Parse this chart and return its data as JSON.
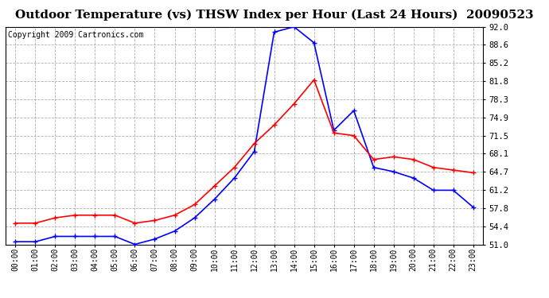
{
  "title": "Outdoor Temperature (vs) THSW Index per Hour (Last 24 Hours)  20090523",
  "copyright": "Copyright 2009 Cartronics.com",
  "hours": [
    "00:00",
    "01:00",
    "02:00",
    "03:00",
    "04:00",
    "05:00",
    "06:00",
    "07:00",
    "08:00",
    "09:00",
    "10:00",
    "11:00",
    "12:00",
    "13:00",
    "14:00",
    "15:00",
    "16:00",
    "17:00",
    "18:00",
    "19:00",
    "20:00",
    "21:00",
    "22:00",
    "23:00"
  ],
  "temp_blue": [
    51.5,
    51.5,
    52.5,
    52.5,
    52.5,
    52.5,
    51.0,
    52.0,
    53.5,
    56.0,
    59.5,
    63.5,
    68.5,
    91.0,
    92.0,
    89.0,
    72.5,
    76.2,
    65.5,
    64.7,
    63.5,
    61.2,
    61.2,
    58.0
  ],
  "thsw_red": [
    55.0,
    55.0,
    56.0,
    56.5,
    56.5,
    56.5,
    55.0,
    55.5,
    56.5,
    58.5,
    62.0,
    65.5,
    70.0,
    73.5,
    77.5,
    82.0,
    72.0,
    71.5,
    67.0,
    67.5,
    67.0,
    65.5,
    65.0,
    64.5
  ],
  "ylim": [
    51.0,
    92.0
  ],
  "yticks": [
    51.0,
    54.4,
    57.8,
    61.2,
    64.7,
    68.1,
    71.5,
    74.9,
    78.3,
    81.8,
    85.2,
    88.6,
    92.0
  ],
  "blue_color": "#0000ff",
  "red_color": "#ff0000",
  "bg_color": "#ffffff",
  "plot_bg": "#ffffff",
  "grid_color": "#b0b0b0",
  "title_fontsize": 11,
  "copyright_fontsize": 7
}
